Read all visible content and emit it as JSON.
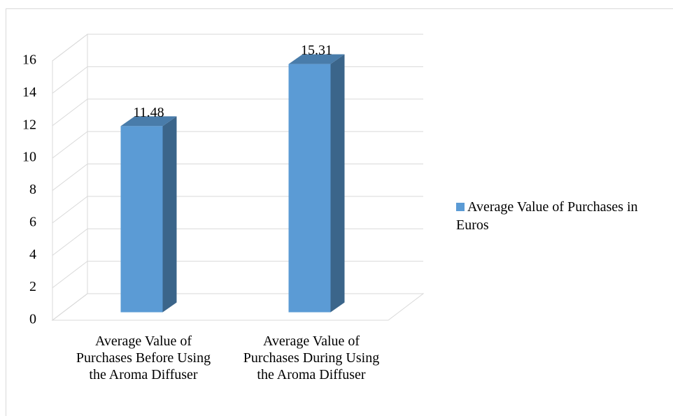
{
  "chart_data": {
    "type": "bar3d",
    "categories": [
      "Average Value of Purchases Before Using the Aroma Diffuser",
      "Average Value of Purchases During Using the Aroma Diffuser"
    ],
    "series": [
      {
        "name": "Average Value of Purchases in Euros",
        "color": "#5b9bd5",
        "values": [
          11.48,
          15.31
        ]
      }
    ],
    "ylim": [
      0,
      16
    ],
    "yticks": [
      0,
      2,
      4,
      6,
      8,
      10,
      12,
      14,
      16
    ],
    "grid": true,
    "legend": "right"
  }
}
